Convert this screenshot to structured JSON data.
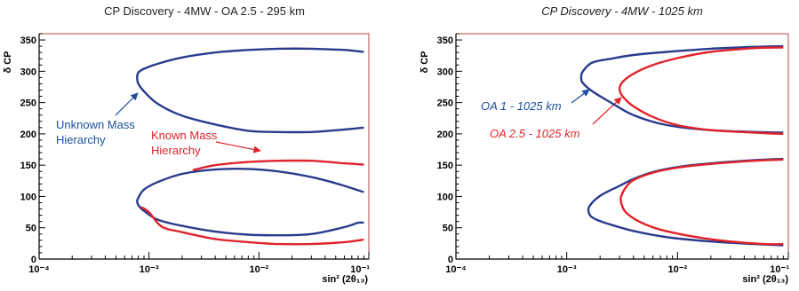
{
  "colors": {
    "blue": "#2a3a8c",
    "red": "#e0232b",
    "frame": "#b44a4a",
    "annot_blue": "#1b4f9c"
  },
  "chart_data": [
    {
      "type": "line",
      "title": "CP Discovery - 4MW - OA 2.5 - 295 km",
      "xlabel": "sin² (2θ₁₃)",
      "ylabel": "δ CP",
      "xscale": "log",
      "xlim": [
        0.0001,
        0.1
      ],
      "ylim": [
        0,
        360
      ],
      "x_ticks": [
        "10⁻⁴",
        "10⁻³",
        "10⁻²",
        "10⁻¹"
      ],
      "y_ticks": [
        0,
        50,
        100,
        150,
        200,
        250,
        300,
        350
      ],
      "grid": false,
      "series": [
        {
          "color": "blue",
          "points": [
            [
              0.09,
              331
            ],
            [
              0.06,
              334
            ],
            [
              0.03,
              336
            ],
            [
              0.015,
              336
            ],
            [
              0.008,
              334
            ],
            [
              0.004,
              330
            ],
            [
              0.002,
              322
            ],
            [
              0.0012,
              312
            ],
            [
              0.0009,
              304
            ],
            [
              0.0008,
              298
            ],
            [
              0.00078,
              290
            ],
            [
              0.0008,
              280
            ],
            [
              0.0009,
              268
            ],
            [
              0.0012,
              248
            ],
            [
              0.002,
              229
            ],
            [
              0.004,
              215
            ],
            [
              0.008,
              205
            ],
            [
              0.015,
              203
            ],
            [
              0.03,
              203
            ],
            [
              0.06,
              207
            ],
            [
              0.09,
              210
            ]
          ]
        },
        {
          "color": "blue",
          "points": [
            [
              0.09,
              107
            ],
            [
              0.05,
              121
            ],
            [
              0.03,
              131
            ],
            [
              0.015,
              140
            ],
            [
              0.008,
              144
            ],
            [
              0.004,
              143
            ],
            [
              0.002,
              136
            ],
            [
              0.0012,
              123
            ],
            [
              0.0009,
              111
            ],
            [
              0.0008,
              98
            ],
            [
              0.00078,
              93
            ],
            [
              0.0008,
              86
            ],
            [
              0.0009,
              77
            ],
            [
              0.0012,
              63
            ],
            [
              0.002,
              53
            ],
            [
              0.004,
              44
            ],
            [
              0.008,
              39
            ],
            [
              0.015,
              38
            ],
            [
              0.03,
              40
            ],
            [
              0.06,
              51
            ],
            [
              0.08,
              58
            ],
            [
              0.09,
              58
            ]
          ]
        },
        {
          "color": "red",
          "points": [
            [
              0.0025,
              142
            ],
            [
              0.004,
              150
            ],
            [
              0.008,
              155
            ],
            [
              0.015,
              157
            ],
            [
              0.03,
              157
            ],
            [
              0.06,
              153
            ],
            [
              0.09,
              151
            ]
          ]
        },
        {
          "color": "red",
          "points": [
            [
              0.00085,
              83
            ],
            [
              0.001,
              75
            ],
            [
              0.0013,
              52
            ],
            [
              0.002,
              43
            ],
            [
              0.004,
              32
            ],
            [
              0.008,
              27
            ],
            [
              0.015,
              24
            ],
            [
              0.03,
              24
            ],
            [
              0.06,
              27
            ],
            [
              0.09,
              31
            ]
          ]
        }
      ],
      "annotations": [
        {
          "text_lines": [
            "Unknown Mass",
            "Hierarchy"
          ],
          "color": "blue"
        },
        {
          "text_lines": [
            "Known Mass",
            "Hierarchy"
          ],
          "color": "red"
        }
      ]
    },
    {
      "type": "line",
      "title": "CP Discovery - 4MW  - 1025 km",
      "xlabel": "sin² (2θ₁₃)",
      "ylabel": "δ CP",
      "xscale": "log",
      "xlim": [
        0.0001,
        0.1
      ],
      "ylim": [
        0,
        360
      ],
      "x_ticks": [
        "10⁻⁴",
        "10⁻³",
        "10⁻²",
        "10⁻¹"
      ],
      "y_ticks": [
        0,
        50,
        100,
        150,
        200,
        250,
        300,
        350
      ],
      "grid": false,
      "series": [
        {
          "name": "OA 1 - 1025 km",
          "color": "blue",
          "points": [
            [
              0.09,
              340
            ],
            [
              0.05,
              339
            ],
            [
              0.02,
              336
            ],
            [
              0.008,
              331
            ],
            [
              0.004,
              326
            ],
            [
              0.0025,
              320
            ],
            [
              0.0017,
              314
            ],
            [
              0.0014,
              300
            ],
            [
              0.00135,
              290
            ],
            [
              0.0014,
              281
            ],
            [
              0.0017,
              268
            ],
            [
              0.0025,
              250
            ],
            [
              0.004,
              230
            ],
            [
              0.008,
              214
            ],
            [
              0.02,
              206
            ],
            [
              0.05,
              203
            ],
            [
              0.09,
              202
            ]
          ]
        },
        {
          "name": "OA 2.5 - 1025 km",
          "color": "red",
          "points": [
            [
              0.09,
              338
            ],
            [
              0.05,
              337
            ],
            [
              0.02,
              331
            ],
            [
              0.01,
              321
            ],
            [
              0.006,
              310
            ],
            [
              0.004,
              296
            ],
            [
              0.0032,
              283
            ],
            [
              0.003,
              272
            ],
            [
              0.0032,
              260
            ],
            [
              0.004,
              244
            ],
            [
              0.006,
              227
            ],
            [
              0.01,
              214
            ],
            [
              0.02,
              206
            ],
            [
              0.05,
              202
            ],
            [
              0.09,
              200
            ]
          ]
        },
        {
          "color": "blue",
          "points": [
            [
              0.09,
              160
            ],
            [
              0.05,
              158
            ],
            [
              0.02,
              153
            ],
            [
              0.01,
              147
            ],
            [
              0.006,
              139
            ],
            [
              0.004,
              128
            ],
            [
              0.003,
              117
            ],
            [
              0.002,
              101
            ],
            [
              0.0016,
              84
            ],
            [
              0.0016,
              72
            ],
            [
              0.0018,
              64
            ],
            [
              0.0025,
              55
            ],
            [
              0.004,
              45
            ],
            [
              0.008,
              35
            ],
            [
              0.02,
              28
            ],
            [
              0.05,
              24
            ],
            [
              0.09,
              22
            ]
          ]
        },
        {
          "color": "red",
          "points": [
            [
              0.09,
              159
            ],
            [
              0.05,
              157
            ],
            [
              0.02,
              152
            ],
            [
              0.01,
              146
            ],
            [
              0.006,
              138
            ],
            [
              0.004,
              126
            ],
            [
              0.0034,
              114
            ],
            [
              0.0031,
              100
            ],
            [
              0.0031,
              90
            ],
            [
              0.0034,
              75
            ],
            [
              0.0045,
              60
            ],
            [
              0.007,
              47
            ],
            [
              0.015,
              35
            ],
            [
              0.03,
              28
            ],
            [
              0.06,
              24
            ],
            [
              0.09,
              24
            ]
          ]
        }
      ],
      "annotations": [
        {
          "text_lines": [
            "OA 1 - 1025 km"
          ],
          "color": "blue"
        },
        {
          "text_lines": [
            "OA 2.5 - 1025 km"
          ],
          "color": "red"
        }
      ]
    }
  ]
}
